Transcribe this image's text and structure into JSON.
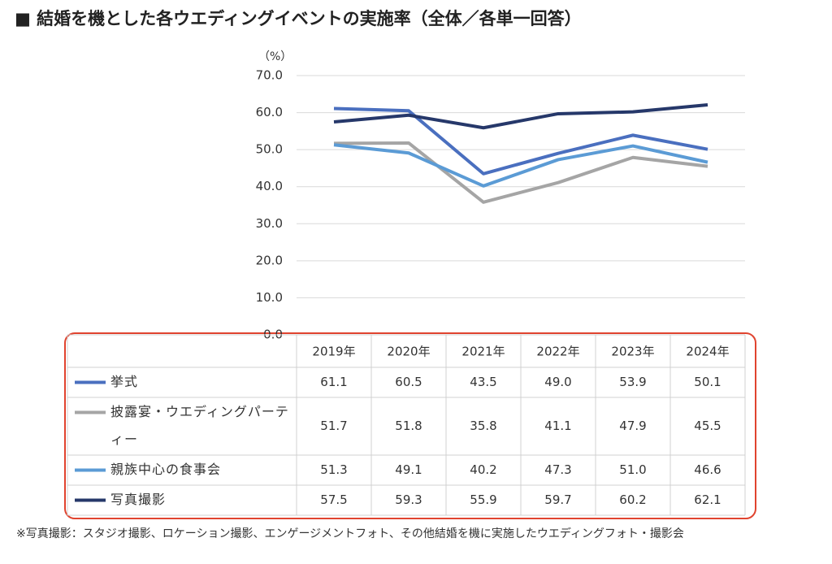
{
  "chart_data": {
    "type": "line",
    "title": "■ 結婚を機とした各ウエディングイベントの実施率（全体／各単一回答）",
    "y_label": "（%）",
    "categories": [
      "2019年",
      "2020年",
      "2021年",
      "2022年",
      "2023年",
      "2024年"
    ],
    "series": [
      {
        "name": "挙式",
        "color": "#4a6fbf",
        "values": [
          61.1,
          60.5,
          43.5,
          49,
          53.9,
          50.1
        ],
        "value_labels": [
          "61.1",
          "60.5",
          "43.5",
          "49.0",
          "53.9",
          "50.1"
        ]
      },
      {
        "name": "披露宴・ウエディングパーティー",
        "color": "#a5a5a5",
        "values": [
          51.7,
          51.8,
          35.8,
          41.1,
          47.9,
          45.5
        ],
        "value_labels": [
          "51.7",
          "51.8",
          "35.8",
          "41.1",
          "47.9",
          "45.5"
        ]
      },
      {
        "name": "親族中心の食事会",
        "color": "#5b9bd5",
        "values": [
          51.3,
          49.1,
          40.2,
          47.3,
          51,
          46.6
        ],
        "value_labels": [
          "51.3",
          "49.1",
          "40.2",
          "47.3",
          "51.0",
          "46.6"
        ]
      },
      {
        "name": "写真撮影",
        "color": "#26386a",
        "values": [
          57.5,
          59.3,
          55.9,
          59.7,
          60.2,
          62.1
        ],
        "value_labels": [
          "57.5",
          "59.3",
          "55.9",
          "59.7",
          "60.2",
          "62.1"
        ]
      }
    ],
    "ylim": [
      0,
      70
    ],
    "yticks": [
      {
        "value": 0,
        "label": "0.0"
      },
      {
        "value": 10,
        "label": "10.0"
      },
      {
        "value": 20,
        "label": "20.0"
      },
      {
        "value": 30,
        "label": "30.0"
      },
      {
        "value": 40,
        "label": "40.0"
      },
      {
        "value": 50,
        "label": "50.0"
      },
      {
        "value": 60,
        "label": "60.0"
      },
      {
        "value": 70,
        "label": "70.0"
      }
    ],
    "grid": true,
    "footnote": "※写真撮影：スタジオ撮影、ロケーション撮影、エンゲージメントフォト、その他結婚を機に実施したウエディングフォト・撮影会"
  }
}
